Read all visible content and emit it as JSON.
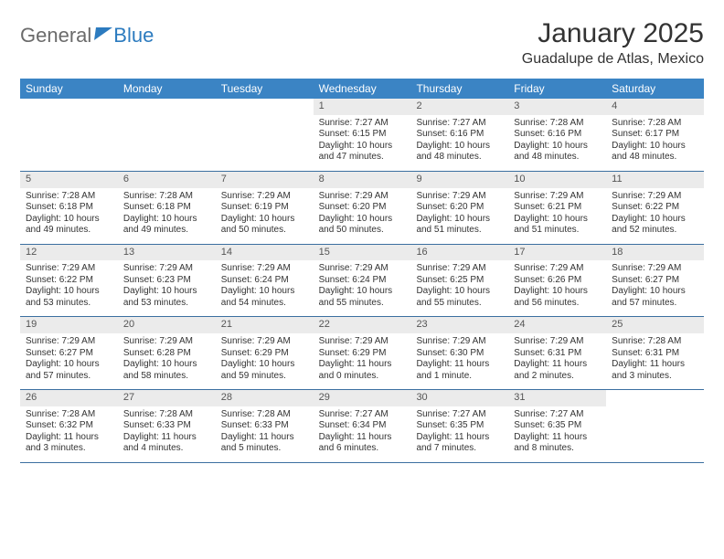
{
  "logo": {
    "word1": "General",
    "word2": "Blue"
  },
  "title": "January 2025",
  "location": "Guadalupe de Atlas, Mexico",
  "colors": {
    "header_bg": "#3b84c4",
    "header_fg": "#ffffff",
    "daynum_bg": "#ebebeb",
    "rule": "#3b6fa0",
    "text": "#333333",
    "logo_gray": "#6b6b6b",
    "logo_blue": "#2c7bbf"
  },
  "day_headers": [
    "Sunday",
    "Monday",
    "Tuesday",
    "Wednesday",
    "Thursday",
    "Friday",
    "Saturday"
  ],
  "weeks": [
    [
      {
        "empty": true
      },
      {
        "empty": true
      },
      {
        "empty": true
      },
      {
        "n": "1",
        "sunrise": "7:27 AM",
        "sunset": "6:15 PM",
        "day": "10 hours and 47 minutes."
      },
      {
        "n": "2",
        "sunrise": "7:27 AM",
        "sunset": "6:16 PM",
        "day": "10 hours and 48 minutes."
      },
      {
        "n": "3",
        "sunrise": "7:28 AM",
        "sunset": "6:16 PM",
        "day": "10 hours and 48 minutes."
      },
      {
        "n": "4",
        "sunrise": "7:28 AM",
        "sunset": "6:17 PM",
        "day": "10 hours and 48 minutes."
      }
    ],
    [
      {
        "n": "5",
        "sunrise": "7:28 AM",
        "sunset": "6:18 PM",
        "day": "10 hours and 49 minutes."
      },
      {
        "n": "6",
        "sunrise": "7:28 AM",
        "sunset": "6:18 PM",
        "day": "10 hours and 49 minutes."
      },
      {
        "n": "7",
        "sunrise": "7:29 AM",
        "sunset": "6:19 PM",
        "day": "10 hours and 50 minutes."
      },
      {
        "n": "8",
        "sunrise": "7:29 AM",
        "sunset": "6:20 PM",
        "day": "10 hours and 50 minutes."
      },
      {
        "n": "9",
        "sunrise": "7:29 AM",
        "sunset": "6:20 PM",
        "day": "10 hours and 51 minutes."
      },
      {
        "n": "10",
        "sunrise": "7:29 AM",
        "sunset": "6:21 PM",
        "day": "10 hours and 51 minutes."
      },
      {
        "n": "11",
        "sunrise": "7:29 AM",
        "sunset": "6:22 PM",
        "day": "10 hours and 52 minutes."
      }
    ],
    [
      {
        "n": "12",
        "sunrise": "7:29 AM",
        "sunset": "6:22 PM",
        "day": "10 hours and 53 minutes."
      },
      {
        "n": "13",
        "sunrise": "7:29 AM",
        "sunset": "6:23 PM",
        "day": "10 hours and 53 minutes."
      },
      {
        "n": "14",
        "sunrise": "7:29 AM",
        "sunset": "6:24 PM",
        "day": "10 hours and 54 minutes."
      },
      {
        "n": "15",
        "sunrise": "7:29 AM",
        "sunset": "6:24 PM",
        "day": "10 hours and 55 minutes."
      },
      {
        "n": "16",
        "sunrise": "7:29 AM",
        "sunset": "6:25 PM",
        "day": "10 hours and 55 minutes."
      },
      {
        "n": "17",
        "sunrise": "7:29 AM",
        "sunset": "6:26 PM",
        "day": "10 hours and 56 minutes."
      },
      {
        "n": "18",
        "sunrise": "7:29 AM",
        "sunset": "6:27 PM",
        "day": "10 hours and 57 minutes."
      }
    ],
    [
      {
        "n": "19",
        "sunrise": "7:29 AM",
        "sunset": "6:27 PM",
        "day": "10 hours and 57 minutes."
      },
      {
        "n": "20",
        "sunrise": "7:29 AM",
        "sunset": "6:28 PM",
        "day": "10 hours and 58 minutes."
      },
      {
        "n": "21",
        "sunrise": "7:29 AM",
        "sunset": "6:29 PM",
        "day": "10 hours and 59 minutes."
      },
      {
        "n": "22",
        "sunrise": "7:29 AM",
        "sunset": "6:29 PM",
        "day": "11 hours and 0 minutes."
      },
      {
        "n": "23",
        "sunrise": "7:29 AM",
        "sunset": "6:30 PM",
        "day": "11 hours and 1 minute."
      },
      {
        "n": "24",
        "sunrise": "7:29 AM",
        "sunset": "6:31 PM",
        "day": "11 hours and 2 minutes."
      },
      {
        "n": "25",
        "sunrise": "7:28 AM",
        "sunset": "6:31 PM",
        "day": "11 hours and 3 minutes."
      }
    ],
    [
      {
        "n": "26",
        "sunrise": "7:28 AM",
        "sunset": "6:32 PM",
        "day": "11 hours and 3 minutes."
      },
      {
        "n": "27",
        "sunrise": "7:28 AM",
        "sunset": "6:33 PM",
        "day": "11 hours and 4 minutes."
      },
      {
        "n": "28",
        "sunrise": "7:28 AM",
        "sunset": "6:33 PM",
        "day": "11 hours and 5 minutes."
      },
      {
        "n": "29",
        "sunrise": "7:27 AM",
        "sunset": "6:34 PM",
        "day": "11 hours and 6 minutes."
      },
      {
        "n": "30",
        "sunrise": "7:27 AM",
        "sunset": "6:35 PM",
        "day": "11 hours and 7 minutes."
      },
      {
        "n": "31",
        "sunrise": "7:27 AM",
        "sunset": "6:35 PM",
        "day": "11 hours and 8 minutes."
      },
      {
        "empty": true
      }
    ]
  ],
  "labels": {
    "sunrise": "Sunrise:",
    "sunset": "Sunset:",
    "daylight": "Daylight:"
  }
}
